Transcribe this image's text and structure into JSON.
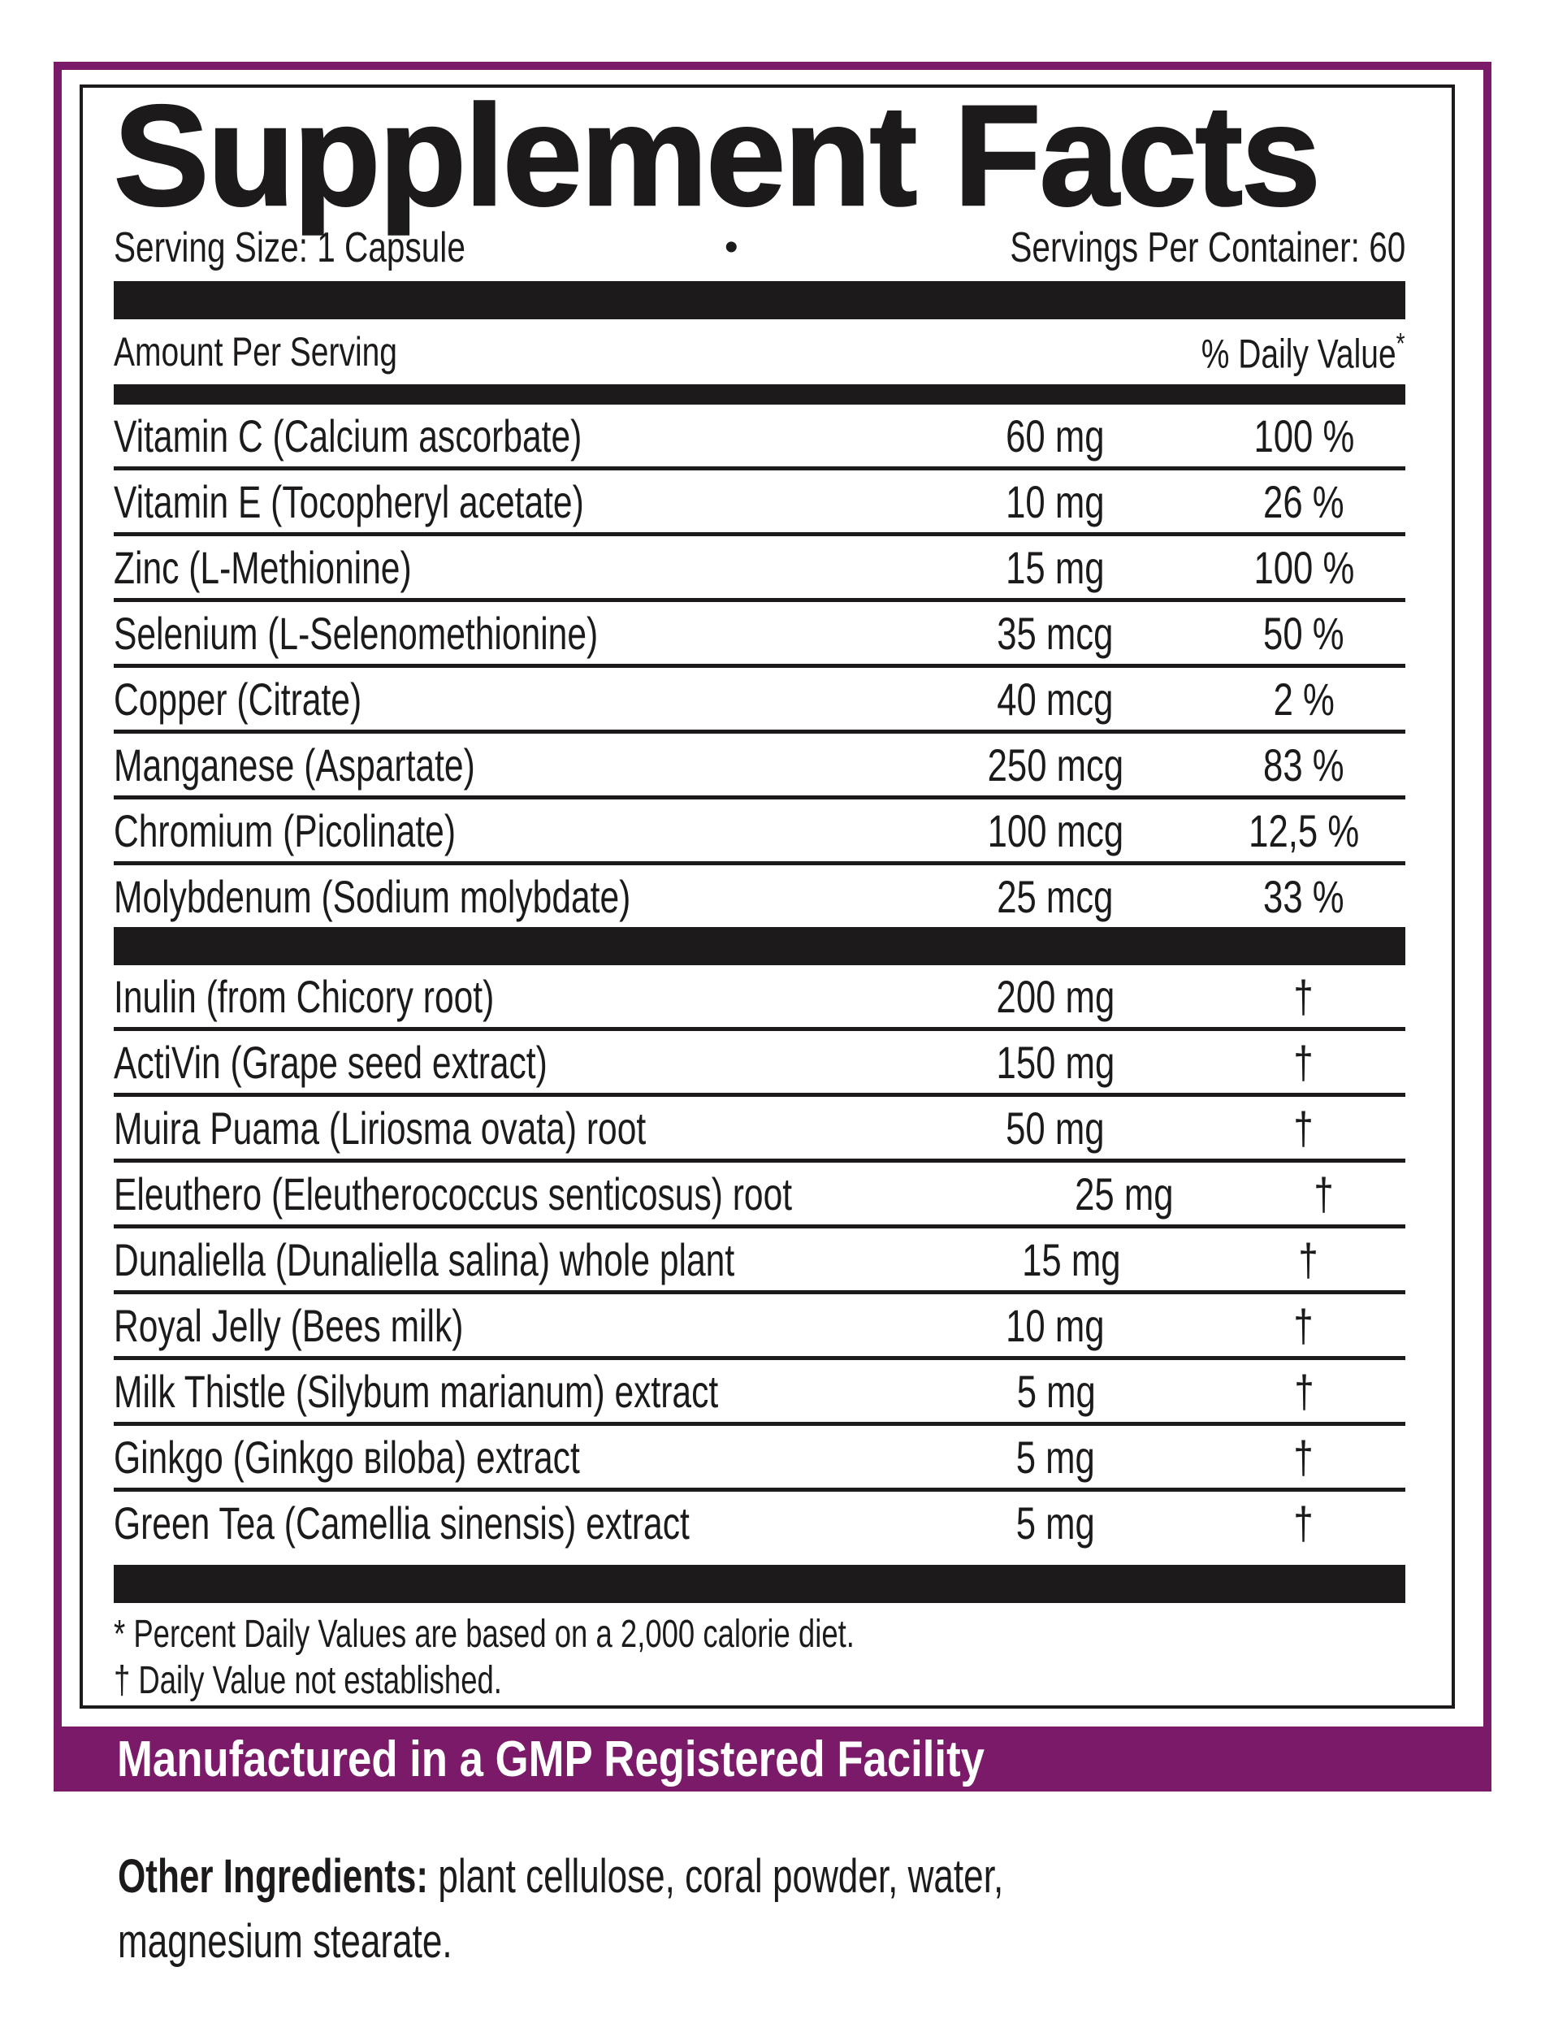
{
  "title": "Supplement Facts",
  "serving": {
    "size_label": "Serving Size: 1 Capsule",
    "separator": "•",
    "per_container_label": "Servings Per Container: 60"
  },
  "table": {
    "amount_header": "Amount Per Serving",
    "dv_header": "% Daily Value",
    "dv_header_mark": "*",
    "rows_main": [
      {
        "name": "Vitamin C (Calcium ascorbate)",
        "amount": "60 mg",
        "dv": "100 %"
      },
      {
        "name": "Vitamin E (Tocopheryl acetate)",
        "amount": "10 mg",
        "dv": "26 %"
      },
      {
        "name": "Zinc (L-Methionine)",
        "amount": "15 mg",
        "dv": "100 %"
      },
      {
        "name": "Selenium (L-Selenomethionine)",
        "amount": "35 mcg",
        "dv": "50 %"
      },
      {
        "name": "Copper (Citrate)",
        "amount": "40 mcg",
        "dv": "2 %"
      },
      {
        "name": "Manganese (Aspartate)",
        "amount": "250 mcg",
        "dv": "83 %"
      },
      {
        "name": "Chromium (Picolinate)",
        "amount": "100 mcg",
        "dv": "12,5 %"
      },
      {
        "name": "Molybdenum (Sodium molybdate)",
        "amount": "25 mcg",
        "dv": "33 %"
      }
    ],
    "rows_blend": [
      {
        "name": "Inulin (from Chicory root)",
        "amount": "200 mg",
        "dv": "†"
      },
      {
        "name": "ActiVin (Grape seed extract)",
        "amount": "150 mg",
        "dv": "†"
      },
      {
        "name": "Muira Puama (Liriosma ovata) root",
        "amount": "50 mg",
        "dv": "†"
      },
      {
        "name": "Eleuthero (Eleutherococcus senticosus) root",
        "amount": "25 mg",
        "dv": "†"
      },
      {
        "name": "Dunaliella (Dunaliella salina) whole plant",
        "amount": "15 mg",
        "dv": "†"
      },
      {
        "name": "Royal Jelly (Bees milk)",
        "amount": "10 mg",
        "dv": "†"
      },
      {
        "name": "Milk Thistle (Silybum marianum) extract",
        "amount": "5 mg",
        "dv": "†"
      },
      {
        "name": "Ginkgo (Ginkgo вiloba) extract",
        "amount": "5 mg",
        "dv": "†"
      },
      {
        "name": "Green Tea (Camellia sinensis) extract",
        "amount": "5 mg",
        "dv": "†"
      }
    ]
  },
  "footnotes": {
    "line1": "* Percent Daily Values are based on a 2,000 calorie diet.",
    "line2": "† Daily Value not established."
  },
  "gmp_banner": "Manufactured in a GMP Registered Facility",
  "other_ingredients": {
    "label": "Other Ingredients:",
    "line1": " plant cellulose, coral powder, water,",
    "line2": "magnesium stearate."
  },
  "colors": {
    "purple": "#7a1a68",
    "black": "#1d1a1b"
  }
}
